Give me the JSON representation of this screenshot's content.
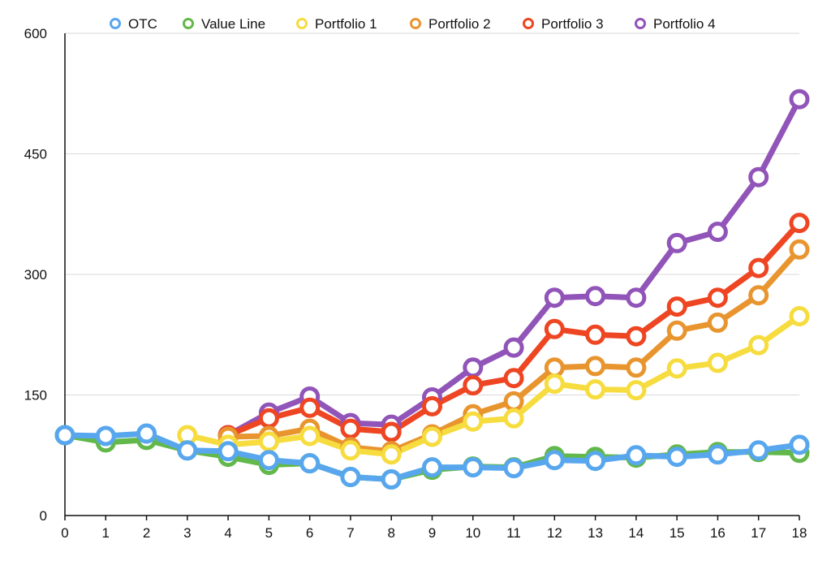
{
  "chart_data": {
    "type": "line",
    "title": "",
    "xlabel": "",
    "ylabel": "",
    "x": [
      0,
      1,
      2,
      3,
      4,
      5,
      6,
      7,
      8,
      9,
      10,
      11,
      12,
      13,
      14,
      15,
      16,
      17,
      18
    ],
    "ylim": [
      0,
      600
    ],
    "yticks": [
      0,
      150,
      300,
      450,
      600
    ],
    "grid": true,
    "legend": "top",
    "series": [
      {
        "name": "Portfolio 4",
        "color": "#9154B8",
        "start": 4,
        "values": [
          null,
          null,
          null,
          null,
          100,
          128,
          148,
          115,
          113,
          147,
          184,
          209,
          271,
          273,
          271,
          339,
          353,
          421,
          518
        ]
      },
      {
        "name": "Portfolio 3",
        "color": "#EE4522",
        "start": 4,
        "values": [
          null,
          null,
          null,
          null,
          100,
          121,
          134,
          108,
          104,
          136,
          162,
          171,
          232,
          225,
          223,
          260,
          271,
          308,
          364
        ]
      },
      {
        "name": "Portfolio 2",
        "color": "#E8952F",
        "start": 4,
        "values": [
          null,
          null,
          null,
          null,
          98,
          99,
          108,
          85,
          80,
          101,
          126,
          142,
          184,
          186,
          184,
          230,
          240,
          274,
          331
        ]
      },
      {
        "name": "Portfolio 1",
        "color": "#F6DC3E",
        "start": 3,
        "values": [
          null,
          null,
          null,
          100,
          88,
          92,
          99,
          81,
          76,
          98,
          117,
          121,
          164,
          157,
          156,
          183,
          190,
          212,
          248
        ]
      },
      {
        "name": "Value Line",
        "color": "#62B84A",
        "start": 0,
        "values": [
          100,
          91,
          94,
          81,
          73,
          63,
          65,
          48,
          45,
          57,
          61,
          60,
          74,
          73,
          72,
          76,
          79,
          79,
          78
        ]
      },
      {
        "name": "OTC",
        "color": "#58A7EE",
        "start": 0,
        "values": [
          100,
          99,
          102,
          81,
          80,
          69,
          65,
          48,
          45,
          60,
          60,
          59,
          69,
          68,
          75,
          73,
          76,
          81,
          88
        ]
      }
    ],
    "legend_order": [
      "OTC",
      "Value Line",
      "Portfolio 1",
      "Portfolio 2",
      "Portfolio 3",
      "Portfolio 4"
    ]
  }
}
